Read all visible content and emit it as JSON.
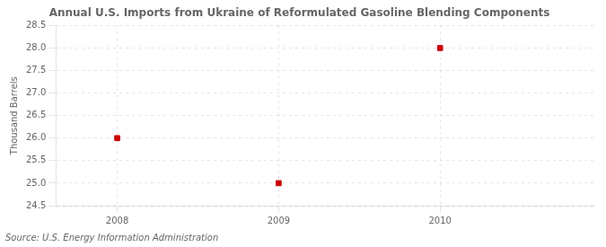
{
  "chart_data": {
    "type": "scatter",
    "title": "Annual U.S. Imports from Ukraine of Reformulated Gasoline Blending Components",
    "ylabel": "Thousand Barrels",
    "annotation": "Source: U.S. Energy Information Administration",
    "x": [
      2008,
      2009,
      2010
    ],
    "values": [
      26.0,
      25.0,
      28.0
    ],
    "color": "#cc0000",
    "marker": "square",
    "xlim": [
      2007.62,
      2010.95
    ],
    "ylim": [
      24.5,
      28.5
    ],
    "xticks": [
      2008,
      2009,
      2010
    ],
    "yticks": [
      24.5,
      {
        "value": 25.0,
        "label": "25.0"
      },
      25.5,
      {
        "value": 26.0,
        "label": "26.0"
      },
      26.5,
      {
        "value": 27.0,
        "label": "27.0"
      },
      27.5,
      {
        "value": 28.0,
        "label": "28.0"
      },
      28.5
    ],
    "grid": true
  }
}
